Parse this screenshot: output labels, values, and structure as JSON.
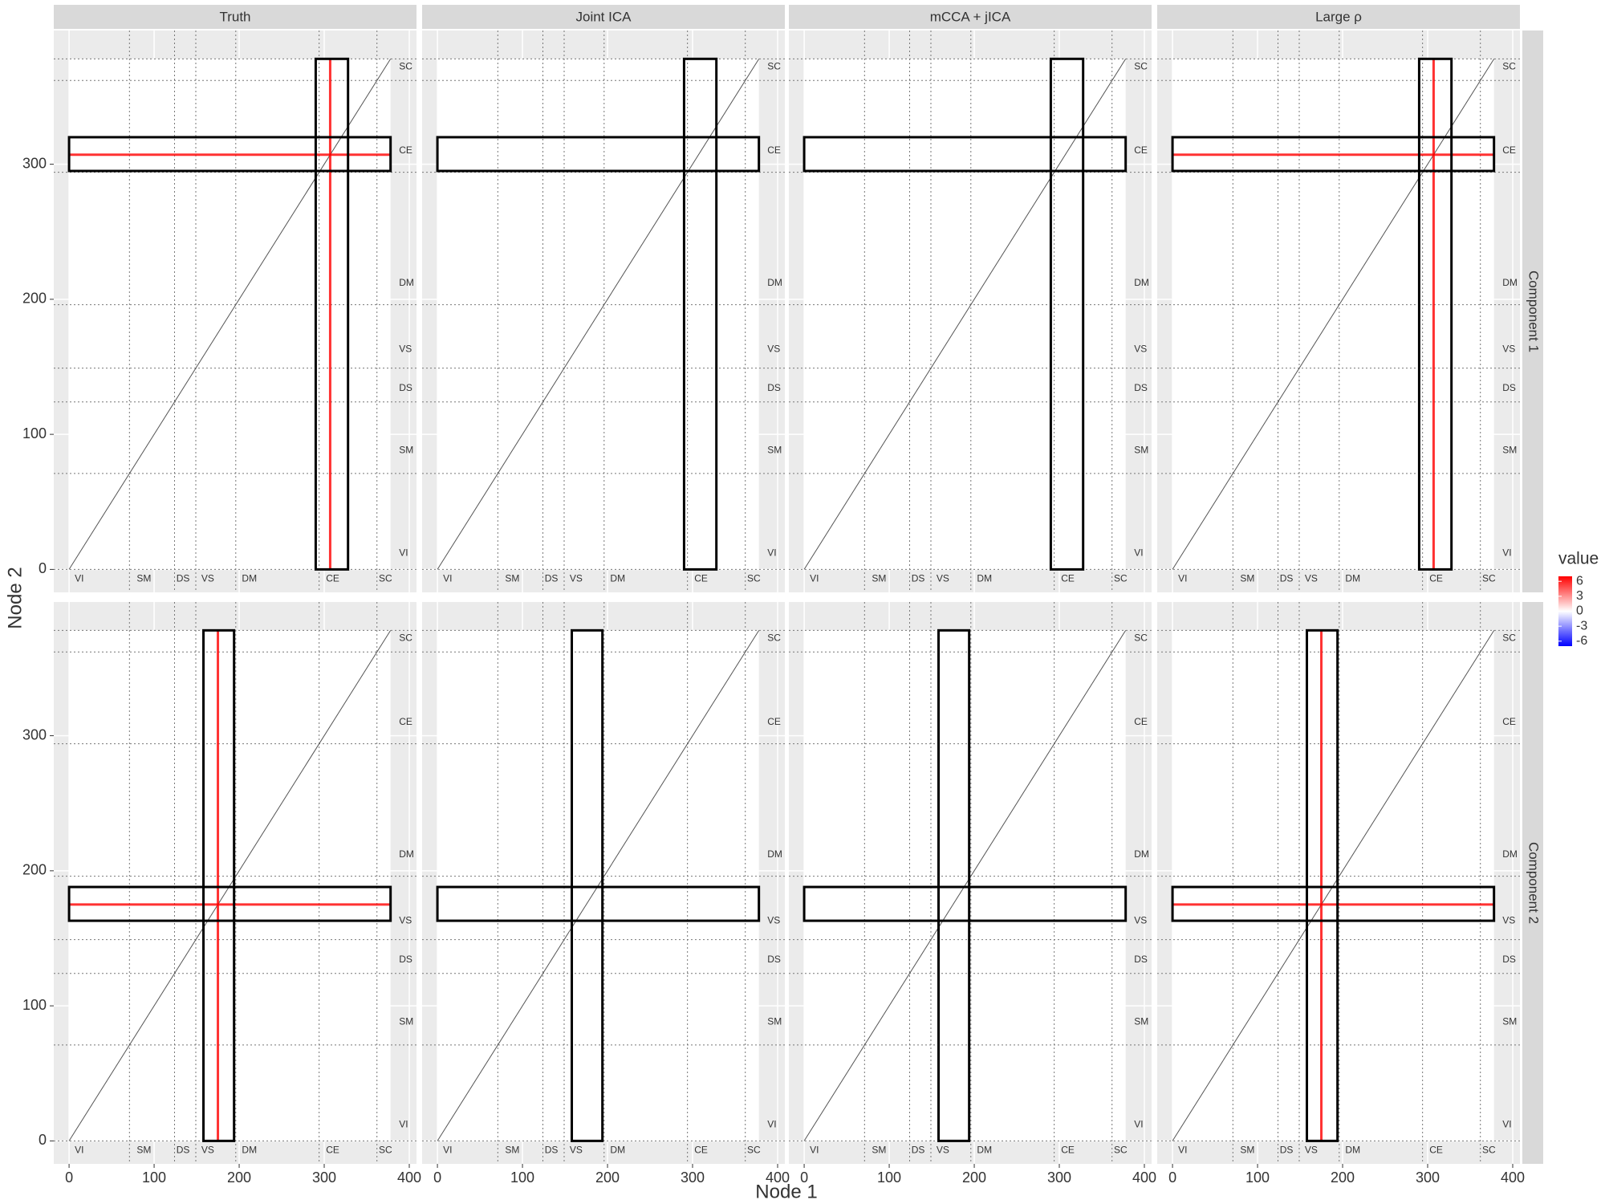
{
  "chart_data": {
    "type": "heatmap",
    "x_label": "Node 1",
    "y_label": "Node 2",
    "columns": [
      "Truth",
      "Joint ICA",
      "mCCA + jICA",
      "Large ρ"
    ],
    "rows": [
      "Component 1",
      "Component 2"
    ],
    "xlim": [
      -18,
      408.5
    ],
    "ylim": [
      -17,
      399
    ],
    "xticks": [
      0,
      100,
      200,
      300,
      400
    ],
    "yticks": [
      0,
      100,
      200,
      300
    ],
    "grid": true,
    "matrix_extent": [
      0,
      378
    ],
    "boundaries": [
      71,
      124,
      149,
      196,
      294,
      362
    ],
    "networks": [
      "VI",
      "SM",
      "DS",
      "VS",
      "DM",
      "CE",
      "SC"
    ],
    "network_positions": [
      12,
      88,
      134,
      163,
      212,
      310,
      372
    ],
    "boxes": [
      {
        "row_span": [
          295,
          320
        ],
        "col_span": [
          290,
          328
        ]
      },
      {
        "row_span": [
          163,
          188
        ],
        "col_span": [
          158,
          194
        ]
      }
    ],
    "signal_nodes": [
      307,
      175
    ],
    "signal_columns": [
      0,
      3
    ],
    "signal_color": "#ff0000",
    "legend": {
      "title": "value",
      "ticks": [
        6,
        3,
        0,
        -3,
        -6
      ],
      "colorlim": [
        -7,
        7
      ],
      "colors": [
        "#0000ff",
        "#ffffff",
        "#ff0000"
      ]
    }
  }
}
